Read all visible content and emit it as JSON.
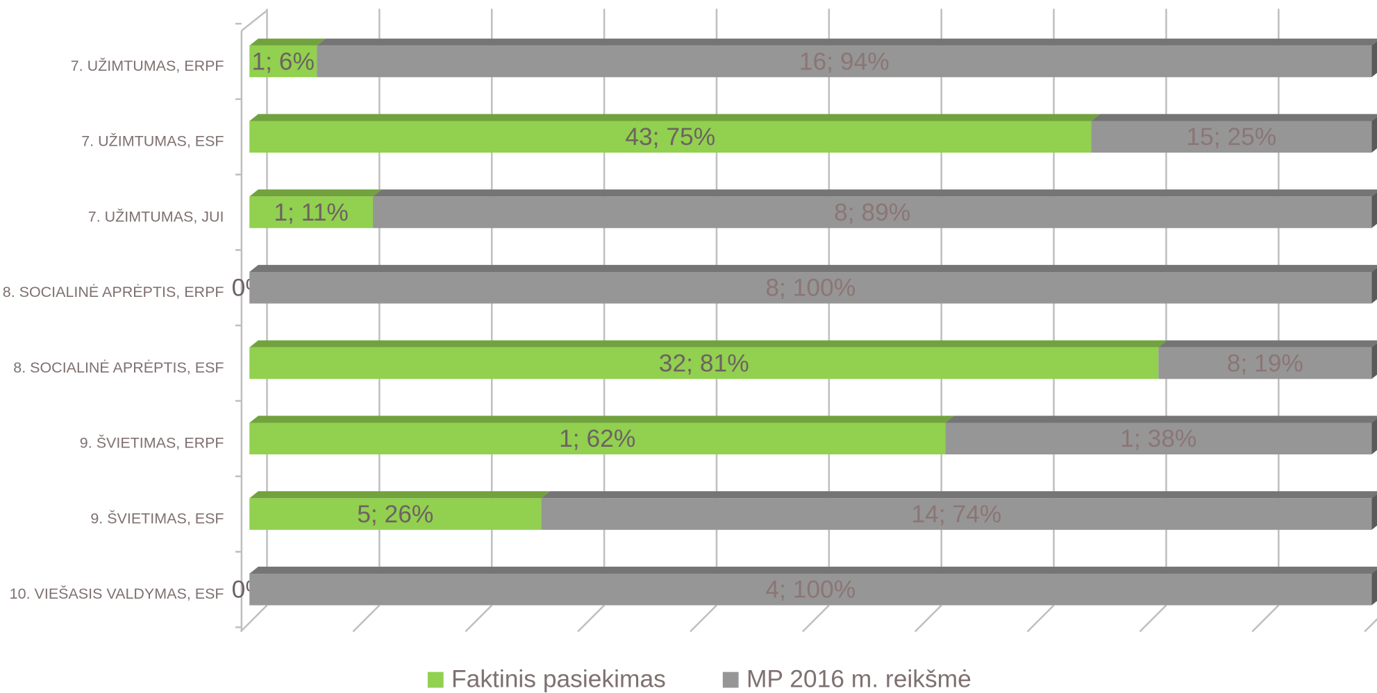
{
  "chart_data": {
    "type": "bar",
    "orientation": "horizontal",
    "stacked": "percent",
    "categories": [
      "7. UŽIMTUMAS, ERPF",
      "7. UŽIMTUMAS, ESF",
      "7. UŽIMTUMAS, JUI",
      "8. SOCIALINĖ APRĖPTIS, ERPF",
      "8. SOCIALINĖ APRĖPTIS, ESF",
      "9. ŠVIETIMAS, ERPF",
      "9. ŠVIETIMAS, ESF",
      "10. VIEŠASIS VALDYMAS, ESF"
    ],
    "series": [
      {
        "name": "Faktinis pasiekimas",
        "color": "#92d050",
        "values": [
          6,
          75,
          11,
          0,
          81,
          62,
          26,
          0
        ],
        "value_labels": [
          "1; 6%",
          "43; 75%",
          "1; 11%",
          "0%",
          "32; 81%",
          "1; 62%",
          "5; 26%",
          "0%"
        ]
      },
      {
        "name": "MP 2016 m. reikšmė",
        "color": "#969696",
        "values": [
          94,
          25,
          89,
          100,
          19,
          38,
          74,
          100
        ],
        "value_labels": [
          "16; 94%",
          "15; 25%",
          "8; 89%",
          "8; 100%",
          "8; 19%",
          "1; 38%",
          "14; 74%",
          "4; 100%"
        ]
      }
    ],
    "xlim": [
      0,
      100
    ],
    "xticks": [
      0,
      10,
      20,
      30,
      40,
      50,
      60,
      70,
      80,
      90,
      100
    ],
    "grid": true,
    "legend": "bottom"
  }
}
